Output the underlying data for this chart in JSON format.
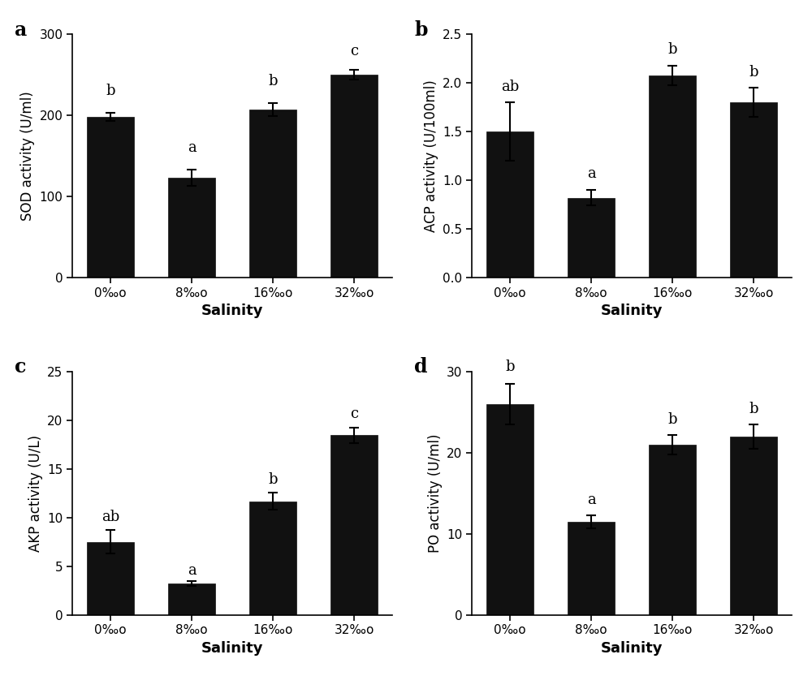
{
  "panels": [
    {
      "label": "a",
      "ylabel": "SOD activity (U/ml)",
      "ylim": [
        0,
        300
      ],
      "yticks": [
        0,
        100,
        200,
        300
      ],
      "values": [
        198,
        123,
        207,
        250
      ],
      "errors": [
        5,
        10,
        8,
        6
      ],
      "sig_labels": [
        "b",
        "a",
        "b",
        "c"
      ],
      "sig_offsets": [
        18,
        18,
        18,
        14
      ]
    },
    {
      "label": "b",
      "ylabel": "ACP activity (U/100ml)",
      "ylim": [
        0,
        2.5
      ],
      "yticks": [
        0.0,
        0.5,
        1.0,
        1.5,
        2.0,
        2.5
      ],
      "values": [
        1.5,
        0.82,
        2.08,
        1.8
      ],
      "errors": [
        0.3,
        0.08,
        0.1,
        0.15
      ],
      "sig_labels": [
        "ab",
        "a",
        "b",
        "b"
      ],
      "sig_offsets": [
        0.09,
        0.09,
        0.09,
        0.09
      ]
    },
    {
      "label": "c",
      "ylabel": "AKP activity (U/L)",
      "ylim": [
        0,
        25
      ],
      "yticks": [
        0,
        5,
        10,
        15,
        20,
        25
      ],
      "values": [
        7.5,
        3.2,
        11.7,
        18.5
      ],
      "errors": [
        1.2,
        0.25,
        0.9,
        0.8
      ],
      "sig_labels": [
        "ab",
        "a",
        "b",
        "c"
      ],
      "sig_offsets": [
        0.6,
        0.4,
        0.6,
        0.6
      ]
    },
    {
      "label": "d",
      "ylabel": "PO activity (U/ml)",
      "ylim": [
        0,
        30
      ],
      "yticks": [
        0,
        10,
        20,
        30
      ],
      "values": [
        26.0,
        11.5,
        21.0,
        22.0
      ],
      "errors": [
        2.5,
        0.8,
        1.2,
        1.5
      ],
      "sig_labels": [
        "b",
        "a",
        "b",
        "b"
      ],
      "sig_offsets": [
        1.2,
        1.0,
        1.0,
        1.0
      ]
    }
  ],
  "bar_color": "#111111",
  "bar_width": 0.58,
  "xlabel": "Salinity",
  "xlabel_fontsize": 13,
  "ylabel_fontsize": 12,
  "tick_fontsize": 11,
  "sig_fontsize": 13,
  "panel_label_fontsize": 17,
  "background_color": "#ffffff",
  "x_tick_labels": [
    "0‰o",
    "8‰o",
    "16‰o",
    "32‰o"
  ]
}
